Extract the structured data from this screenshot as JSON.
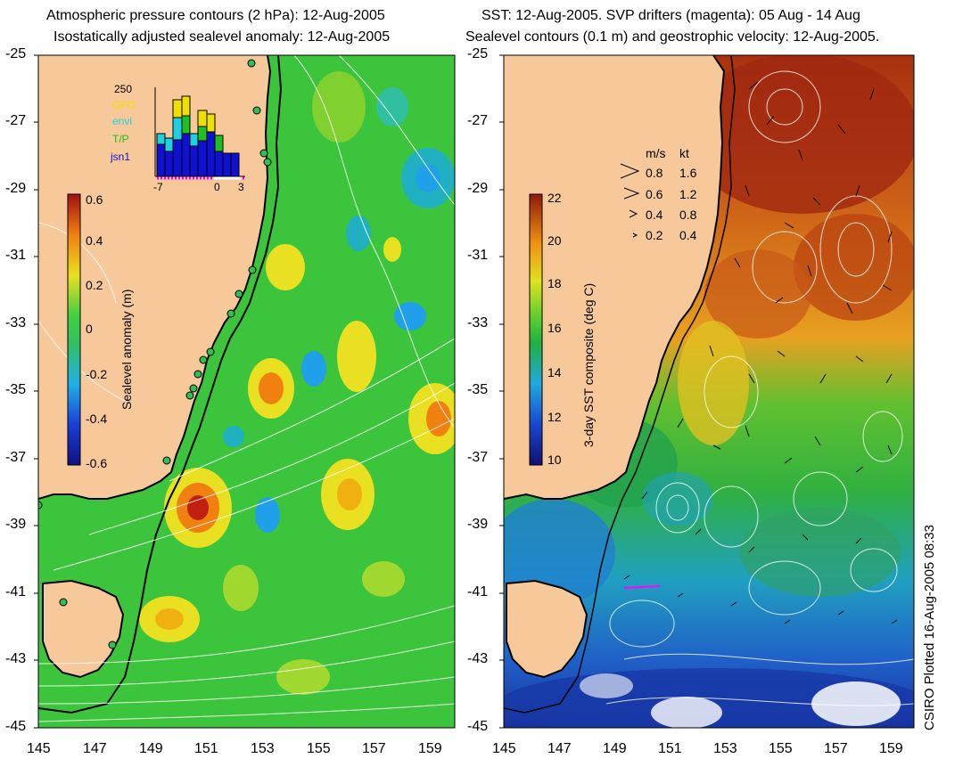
{
  "left_panel": {
    "title_line1": "Atmospheric pressure contours (2 hPa): 12-Aug-2005",
    "title_line2": "Isostatically adjusted sealevel anomaly: 12-Aug-2005",
    "colorbar_label": "Sealevel anomaly (m)",
    "colorbar_ticks": [
      "0.6",
      "0.4",
      "0.2",
      "0",
      "-0.2",
      "-0.4",
      "-0.6"
    ],
    "inset": {
      "count_label": "250",
      "legend": [
        {
          "label": "GFO",
          "color": "#f0e000"
        },
        {
          "label": "envi",
          "color": "#20d0e0"
        },
        {
          "label": "T/P",
          "color": "#20c020"
        },
        {
          "label": "jsn1",
          "color": "#1010d0"
        }
      ],
      "x_ticks": [
        "-7",
        "0",
        "3"
      ]
    }
  },
  "right_panel": {
    "title_line1": "SST: 12-Aug-2005. SVP drifters (magenta): 05 Aug - 14 Aug",
    "title_line2": "Sealevel contours (0.1 m) and geostrophic velocity: 12-Aug-2005.",
    "colorbar_label": "3-day SST composite (deg C)",
    "colorbar_ticks": [
      "22",
      "20",
      "18",
      "16",
      "14",
      "12",
      "10"
    ],
    "speed_legend": {
      "header_ms": "m/s",
      "header_kt": "kt",
      "rows": [
        {
          "ms": "0.8",
          "kt": "1.6"
        },
        {
          "ms": "0.6",
          "kt": "1.2"
        },
        {
          "ms": "0.4",
          "kt": "0.8"
        },
        {
          "ms": "0.2",
          "kt": "0.4"
        }
      ]
    }
  },
  "lat_ticks": [
    "-25",
    "-27",
    "-29",
    "-31",
    "-33",
    "-35",
    "-37",
    "-39",
    "-41",
    "-43",
    "-45"
  ],
  "lon_ticks": [
    "145",
    "147",
    "149",
    "151",
    "153",
    "155",
    "157",
    "159"
  ],
  "credit": "CSIRO Plotted 16-Aug-2005 08:33",
  "colors": {
    "land": "#f7c89a",
    "ocean_green": "#3cc43c",
    "coast": "#000000"
  }
}
